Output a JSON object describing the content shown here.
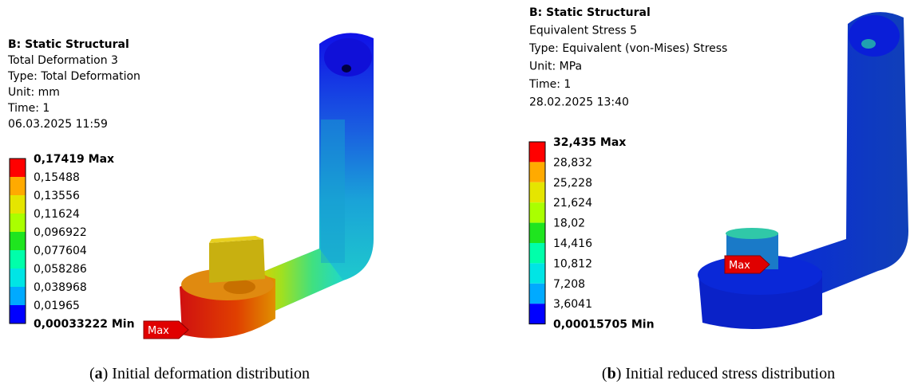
{
  "panels": [
    {
      "header": [
        "B: Static Structural",
        "Total Deformation 3",
        "Type: Total Deformation",
        "Unit: mm",
        "Time: 1",
        "06.03.2025 11:59"
      ],
      "legend_labels": [
        "0,17419 Max",
        "0,15488",
        "0,13556",
        "0,11624",
        "0,096922",
        "0,077604",
        "0,058286",
        "0,038968",
        "0,01965",
        "0,00033222 Min"
      ],
      "legend_colors": [
        "#ff0000",
        "#ffaa00",
        "#e5e500",
        "#aaff00",
        "#1fe51f",
        "#00ffaa",
        "#00e5e5",
        "#00aaff",
        "#0000ff"
      ],
      "flag": "Max",
      "caption": [
        "(",
        "a",
        ") Initial deformation distribution"
      ]
    },
    {
      "header": [
        "B: Static Structural",
        "Equivalent Stress 5",
        "Type: Equivalent (von-Mises) Stress",
        "Unit: MPa",
        "Time: 1",
        "28.02.2025 13:40"
      ],
      "legend_labels": [
        "32,435 Max",
        "28,832",
        "25,228",
        "21,624",
        "18,02",
        "14,416",
        "10,812",
        "7,208",
        "3,6041",
        "0,00015705 Min"
      ],
      "legend_colors": [
        "#ff0000",
        "#ffaa00",
        "#e5e500",
        "#aaff00",
        "#1fe51f",
        "#00ffaa",
        "#00e5e5",
        "#00aaff",
        "#0000ff"
      ],
      "flag": "Max",
      "caption": [
        "(",
        "b",
        ") Initial reduced stress distribution"
      ]
    }
  ]
}
